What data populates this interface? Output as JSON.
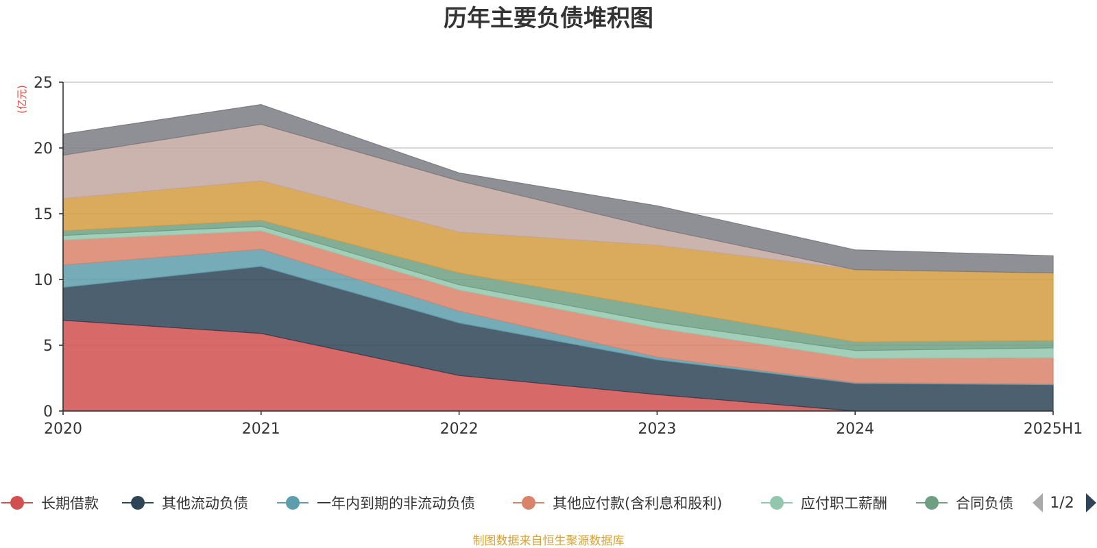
{
  "chart_data": {
    "type": "area",
    "title": "历年主要负债堆积图",
    "ylabel": "(亿元)",
    "xlabel": "",
    "categories": [
      "2020",
      "2021",
      "2022",
      "2023",
      "2024",
      "2025H1"
    ],
    "ylim": [
      0,
      25
    ],
    "yticks": [
      0,
      5,
      10,
      15,
      20,
      25
    ],
    "grid": true,
    "stacked": true,
    "series": [
      {
        "name": "长期借款",
        "color": "#d0504f",
        "values": [
          6.9,
          5.9,
          2.7,
          1.25,
          0.0,
          0.0
        ]
      },
      {
        "name": "其他流动负债",
        "color": "#2e4457",
        "values": [
          2.5,
          5.1,
          4.0,
          2.65,
          2.1,
          2.0
        ]
      },
      {
        "name": "一年内到期的非流动负债",
        "color": "#5d9eac",
        "values": [
          1.7,
          1.3,
          0.9,
          0.2,
          0.05,
          0.05
        ]
      },
      {
        "name": "其他应付款(含利息和股利)",
        "color": "#d9836a",
        "values": [
          1.9,
          1.4,
          1.6,
          2.2,
          1.85,
          2.0
        ]
      },
      {
        "name": "应付职工薪酬",
        "color": "#92c7ad",
        "values": [
          0.35,
          0.35,
          0.4,
          0.45,
          0.6,
          0.75
        ]
      },
      {
        "name": "合同负债",
        "color": "#6e9f82",
        "values": [
          0.35,
          0.45,
          0.9,
          1.1,
          0.65,
          0.55
        ]
      },
      {
        "color": "#d39c3f",
        "values": [
          2.45,
          3.0,
          3.1,
          4.75,
          5.5,
          5.15
        ]
      },
      {
        "color": "#c2a6a0",
        "values": [
          3.3,
          4.3,
          3.9,
          1.3,
          0.0,
          0.0
        ]
      },
      {
        "color": "#7b7c82",
        "values": [
          1.6,
          1.5,
          0.6,
          1.7,
          1.5,
          1.3
        ]
      }
    ]
  },
  "legend": {
    "page": "1/2",
    "visible_count": 6
  },
  "source": "制图数据来自恒生聚源数据库"
}
